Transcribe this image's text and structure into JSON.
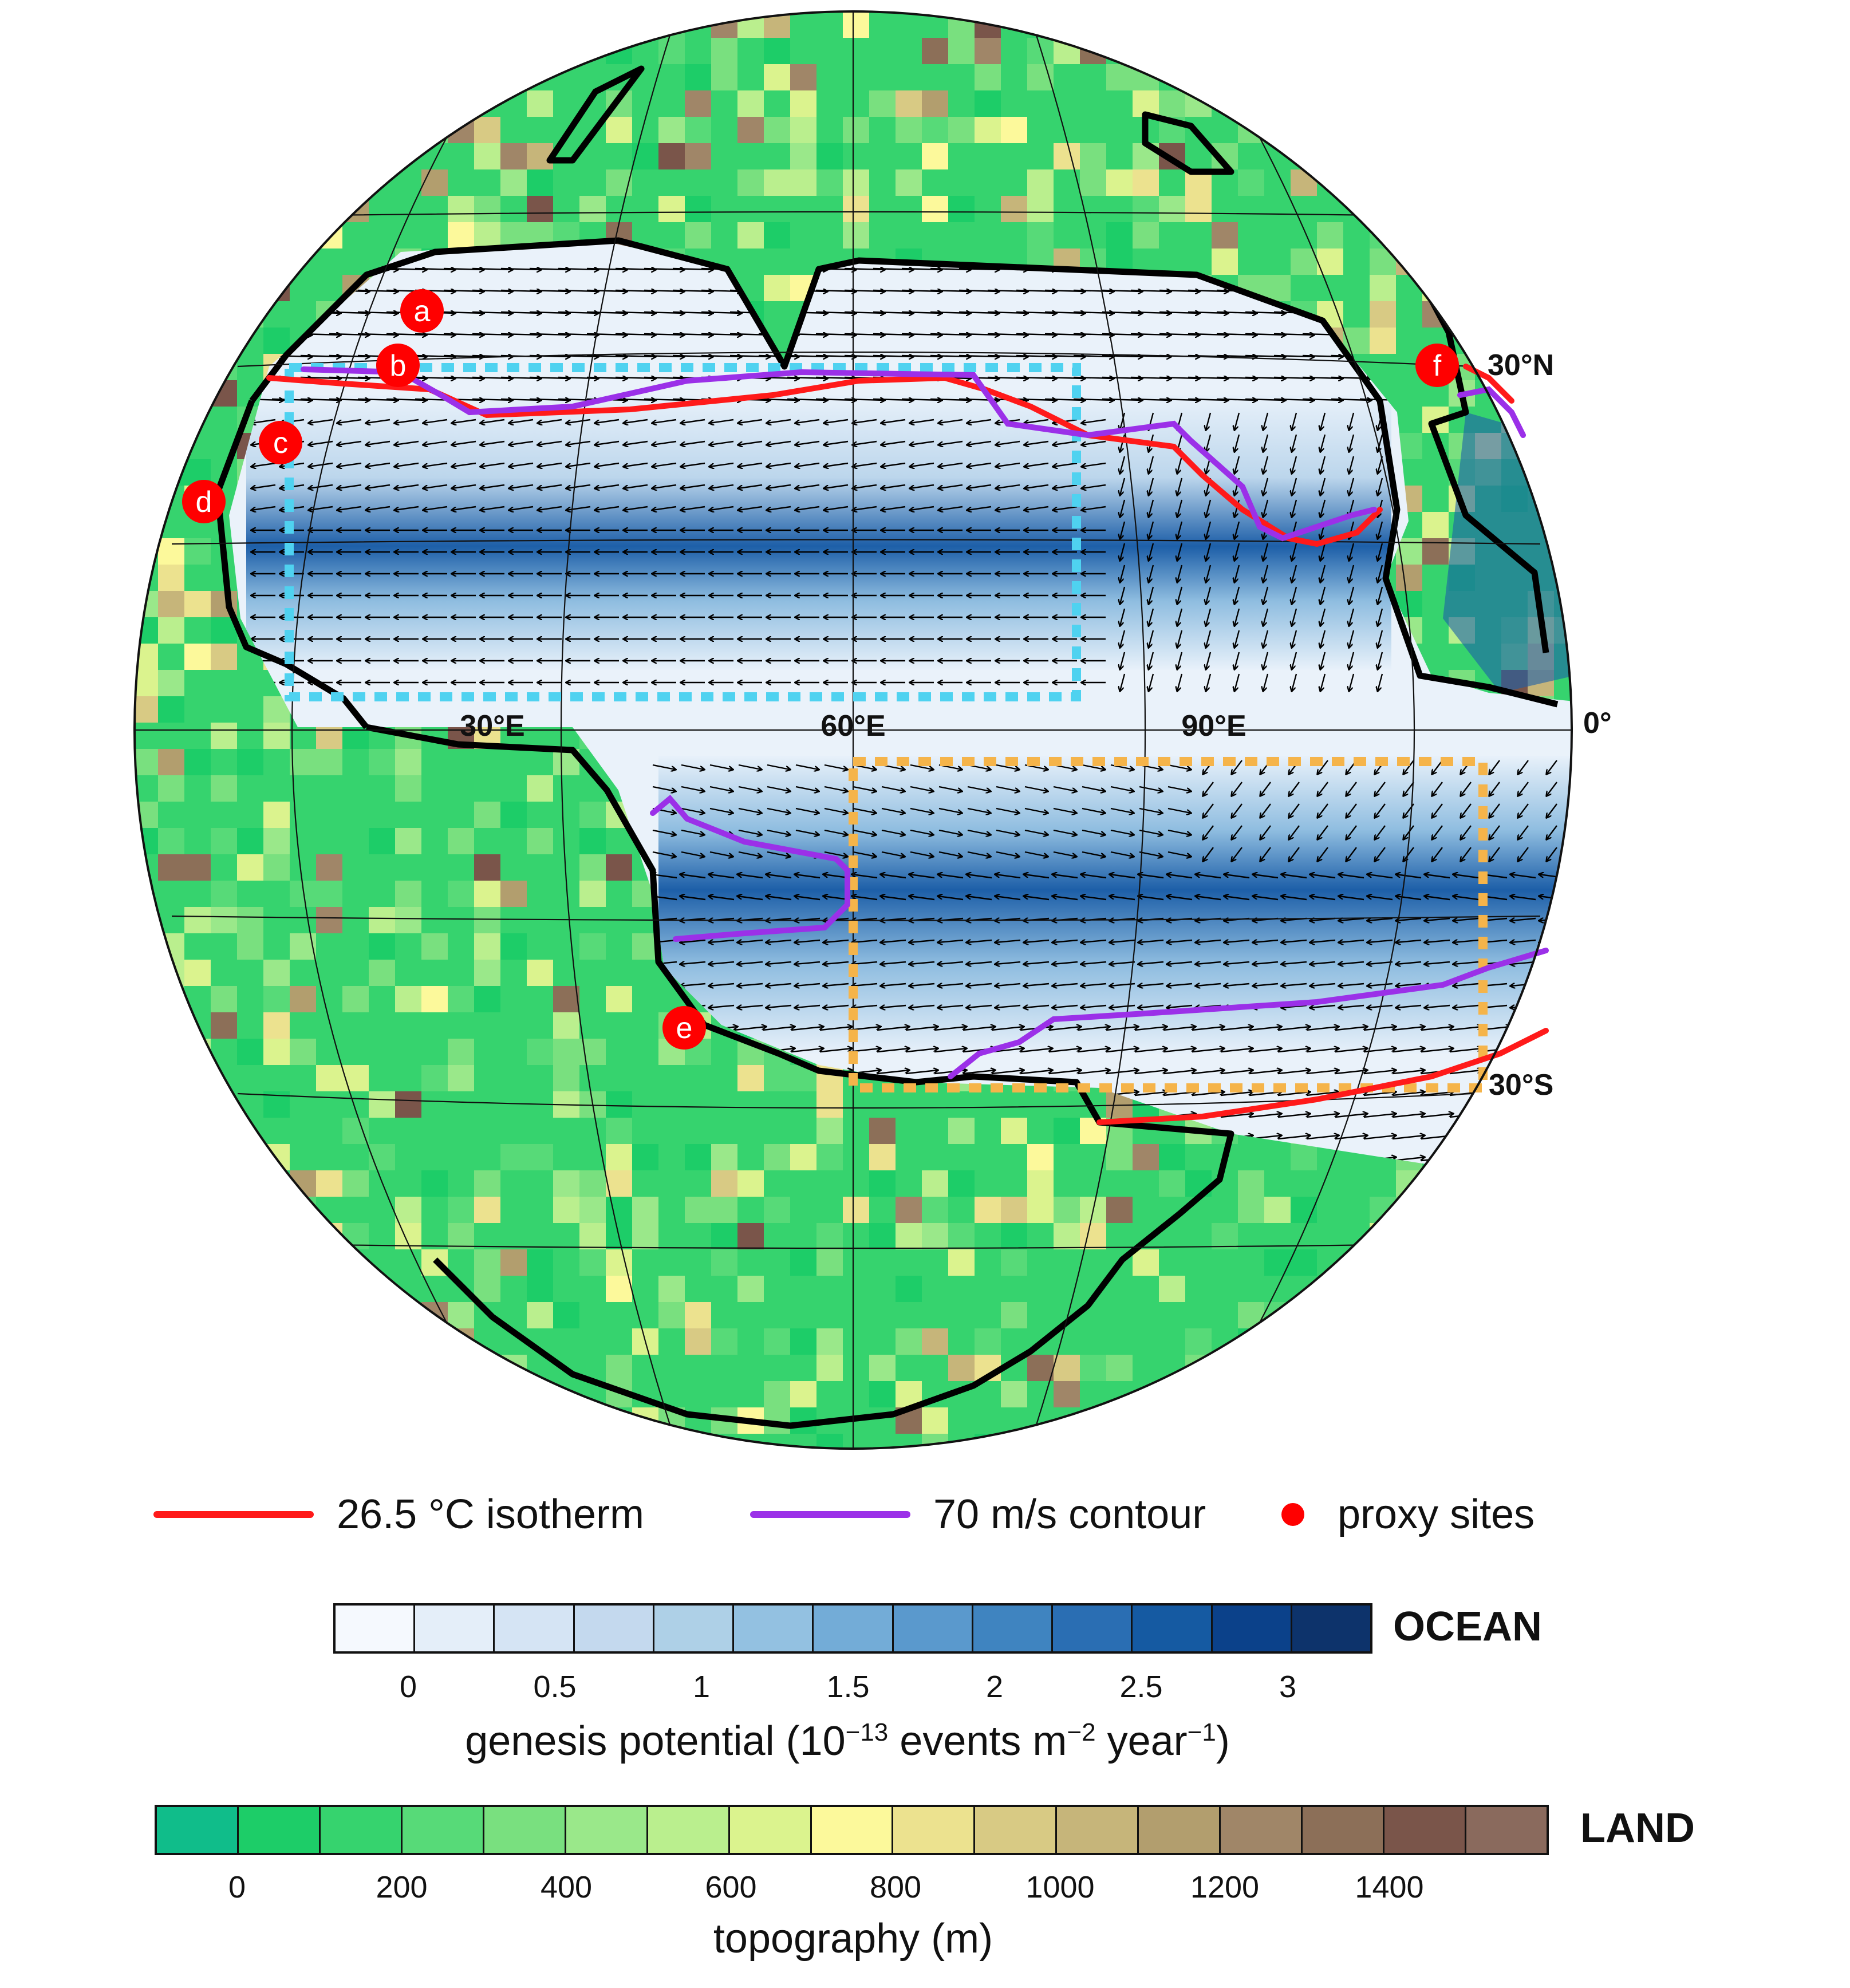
{
  "map": {
    "graticule_labels": {
      "lon_30e": "30°E",
      "lon_60e": "60°E",
      "lon_90e": "90°E",
      "lat_0": "0°",
      "lat_30n": "30°N",
      "lat_30s": "30°S"
    },
    "proxy_sites": [
      "a",
      "b",
      "c",
      "d",
      "e",
      "f"
    ],
    "colors": {
      "isotherm": "#ff1a1a",
      "wind_contour": "#9b30e8",
      "proxy_site": "#ff0000",
      "nh_box": "#4fd2f0",
      "sh_box": "#f5b44a",
      "coastline": "#000000"
    }
  },
  "legend": {
    "isotherm_label": "26.5 °C isotherm",
    "contour_label": "70 m/s contour",
    "proxy_label": "proxy sites"
  },
  "ocean_colorbar": {
    "tag": "OCEAN",
    "ticks": [
      "0",
      "0.5",
      "1",
      "1.5",
      "2",
      "2.5",
      "3"
    ],
    "label_main": "genesis potential (10",
    "label_exp1": "−13",
    "label_mid": " events m",
    "label_exp2": "−2",
    "label_year": " year",
    "label_exp3": "−1",
    "label_close": ")",
    "colors": [
      "#f5f9fe",
      "#e4eef9",
      "#d5e4f4",
      "#c4d9ee",
      "#aed0e7",
      "#93c1e1",
      "#73acd7",
      "#5a99cd",
      "#3f84c0",
      "#2a6eb3",
      "#155aa2",
      "#0b418a",
      "#0d336b"
    ]
  },
  "land_colorbar": {
    "tag": "LAND",
    "ticks": [
      "0",
      "200",
      "400",
      "600",
      "800",
      "1000",
      "1200",
      "1400"
    ],
    "label": "topography (m)",
    "colors": [
      "#10bd8a",
      "#1dcd68",
      "#36d36e",
      "#57da78",
      "#79e07f",
      "#9ae88a",
      "#baef8e",
      "#dbf38e",
      "#fcf99b",
      "#ece28f",
      "#d8ca84",
      "#c6b57a",
      "#b29e6e",
      "#a08668",
      "#8c6f58",
      "#7a554a",
      "#8a6a5d"
    ]
  }
}
